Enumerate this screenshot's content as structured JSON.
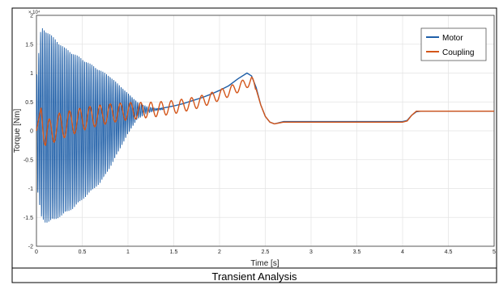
{
  "caption": "Transient Analysis",
  "chart_data": {
    "type": "line",
    "title": "",
    "xlabel": "Time [s]",
    "ylabel": "Torque [Nm]",
    "y_exponent_label": "× 10⁴",
    "xlim": [
      0,
      5
    ],
    "ylim": [
      -2,
      2
    ],
    "y_scale_note": "values in units of 10^4 Nm",
    "x_ticks": [
      "0",
      "0.5",
      "1",
      "1.5",
      "2",
      "2.5",
      "3",
      "3.5",
      "4",
      "4.5",
      "5"
    ],
    "y_ticks": [
      "-2",
      "-1.5",
      "-1",
      "-0.5",
      "0",
      "0.5",
      "1",
      "1.5",
      "2"
    ],
    "grid": true,
    "legend_position": "top-right",
    "series": [
      {
        "name": "Motor",
        "color": "#1f5fa8",
        "x": [
          0,
          0.05,
          0.1,
          0.2,
          0.3,
          0.4,
          0.5,
          0.6,
          0.7,
          0.8,
          0.9,
          1.0,
          1.1,
          1.2,
          1.3,
          1.4,
          1.5,
          1.6,
          1.7,
          1.8,
          1.9,
          2.0,
          2.1,
          2.2,
          2.3,
          2.35,
          2.4,
          2.45,
          2.5,
          2.55,
          2.6,
          2.7,
          3.0,
          3.5,
          4.0,
          4.05,
          4.1,
          4.15,
          4.2,
          4.5,
          5.0
        ],
        "y": [
          0,
          0.9,
          0.3,
          0.25,
          0.2,
          0.3,
          0.35,
          0.4,
          0.42,
          0.43,
          0.42,
          0.4,
          0.37,
          0.36,
          0.37,
          0.4,
          0.43,
          0.47,
          0.52,
          0.57,
          0.63,
          0.7,
          0.78,
          0.9,
          1.0,
          0.95,
          0.75,
          0.45,
          0.25,
          0.15,
          0.12,
          0.16,
          0.16,
          0.16,
          0.16,
          0.18,
          0.27,
          0.33,
          0.34,
          0.34,
          0.34
        ],
        "oscillation_envelope": {
          "t": [
            0,
            0.05,
            0.1,
            0.2,
            0.3,
            0.4,
            0.5,
            0.6,
            0.7,
            0.8,
            0.9,
            1.0,
            1.1,
            1.2,
            1.3,
            1.4
          ],
          "upper": [
            0.9,
            1.8,
            1.75,
            1.6,
            1.45,
            1.35,
            1.25,
            1.15,
            1.05,
            0.95,
            0.8,
            0.65,
            0.5,
            0.42,
            0.39,
            0.38
          ],
          "lower": [
            -0.9,
            -1.5,
            -1.6,
            -1.55,
            -1.45,
            -1.35,
            -1.2,
            -1.05,
            -0.9,
            -0.65,
            -0.35,
            -0.05,
            0.2,
            0.3,
            0.35,
            0.37
          ]
        }
      },
      {
        "name": "Coupling",
        "color": "#d4561a",
        "x": [
          0,
          0.05,
          0.1,
          0.2,
          0.3,
          0.4,
          0.5,
          0.6,
          0.7,
          0.8,
          0.9,
          1.0,
          1.1,
          1.2,
          1.3,
          1.4,
          1.5,
          1.6,
          1.7,
          1.8,
          1.9,
          2.0,
          2.1,
          2.2,
          2.3,
          2.35,
          2.4,
          2.45,
          2.5,
          2.55,
          2.6,
          2.7,
          3.0,
          3.5,
          4.0,
          4.05,
          4.1,
          4.15,
          4.2,
          4.5,
          5.0
        ],
        "y": [
          0,
          0.4,
          -0.1,
          0.05,
          0.1,
          0.15,
          0.2,
          0.24,
          0.27,
          0.3,
          0.32,
          0.34,
          0.35,
          0.36,
          0.37,
          0.39,
          0.41,
          0.44,
          0.47,
          0.51,
          0.56,
          0.62,
          0.68,
          0.75,
          0.83,
          0.86,
          0.72,
          0.45,
          0.25,
          0.15,
          0.12,
          0.15,
          0.15,
          0.15,
          0.15,
          0.17,
          0.27,
          0.34,
          0.34,
          0.34,
          0.34
        ]
      }
    ]
  }
}
